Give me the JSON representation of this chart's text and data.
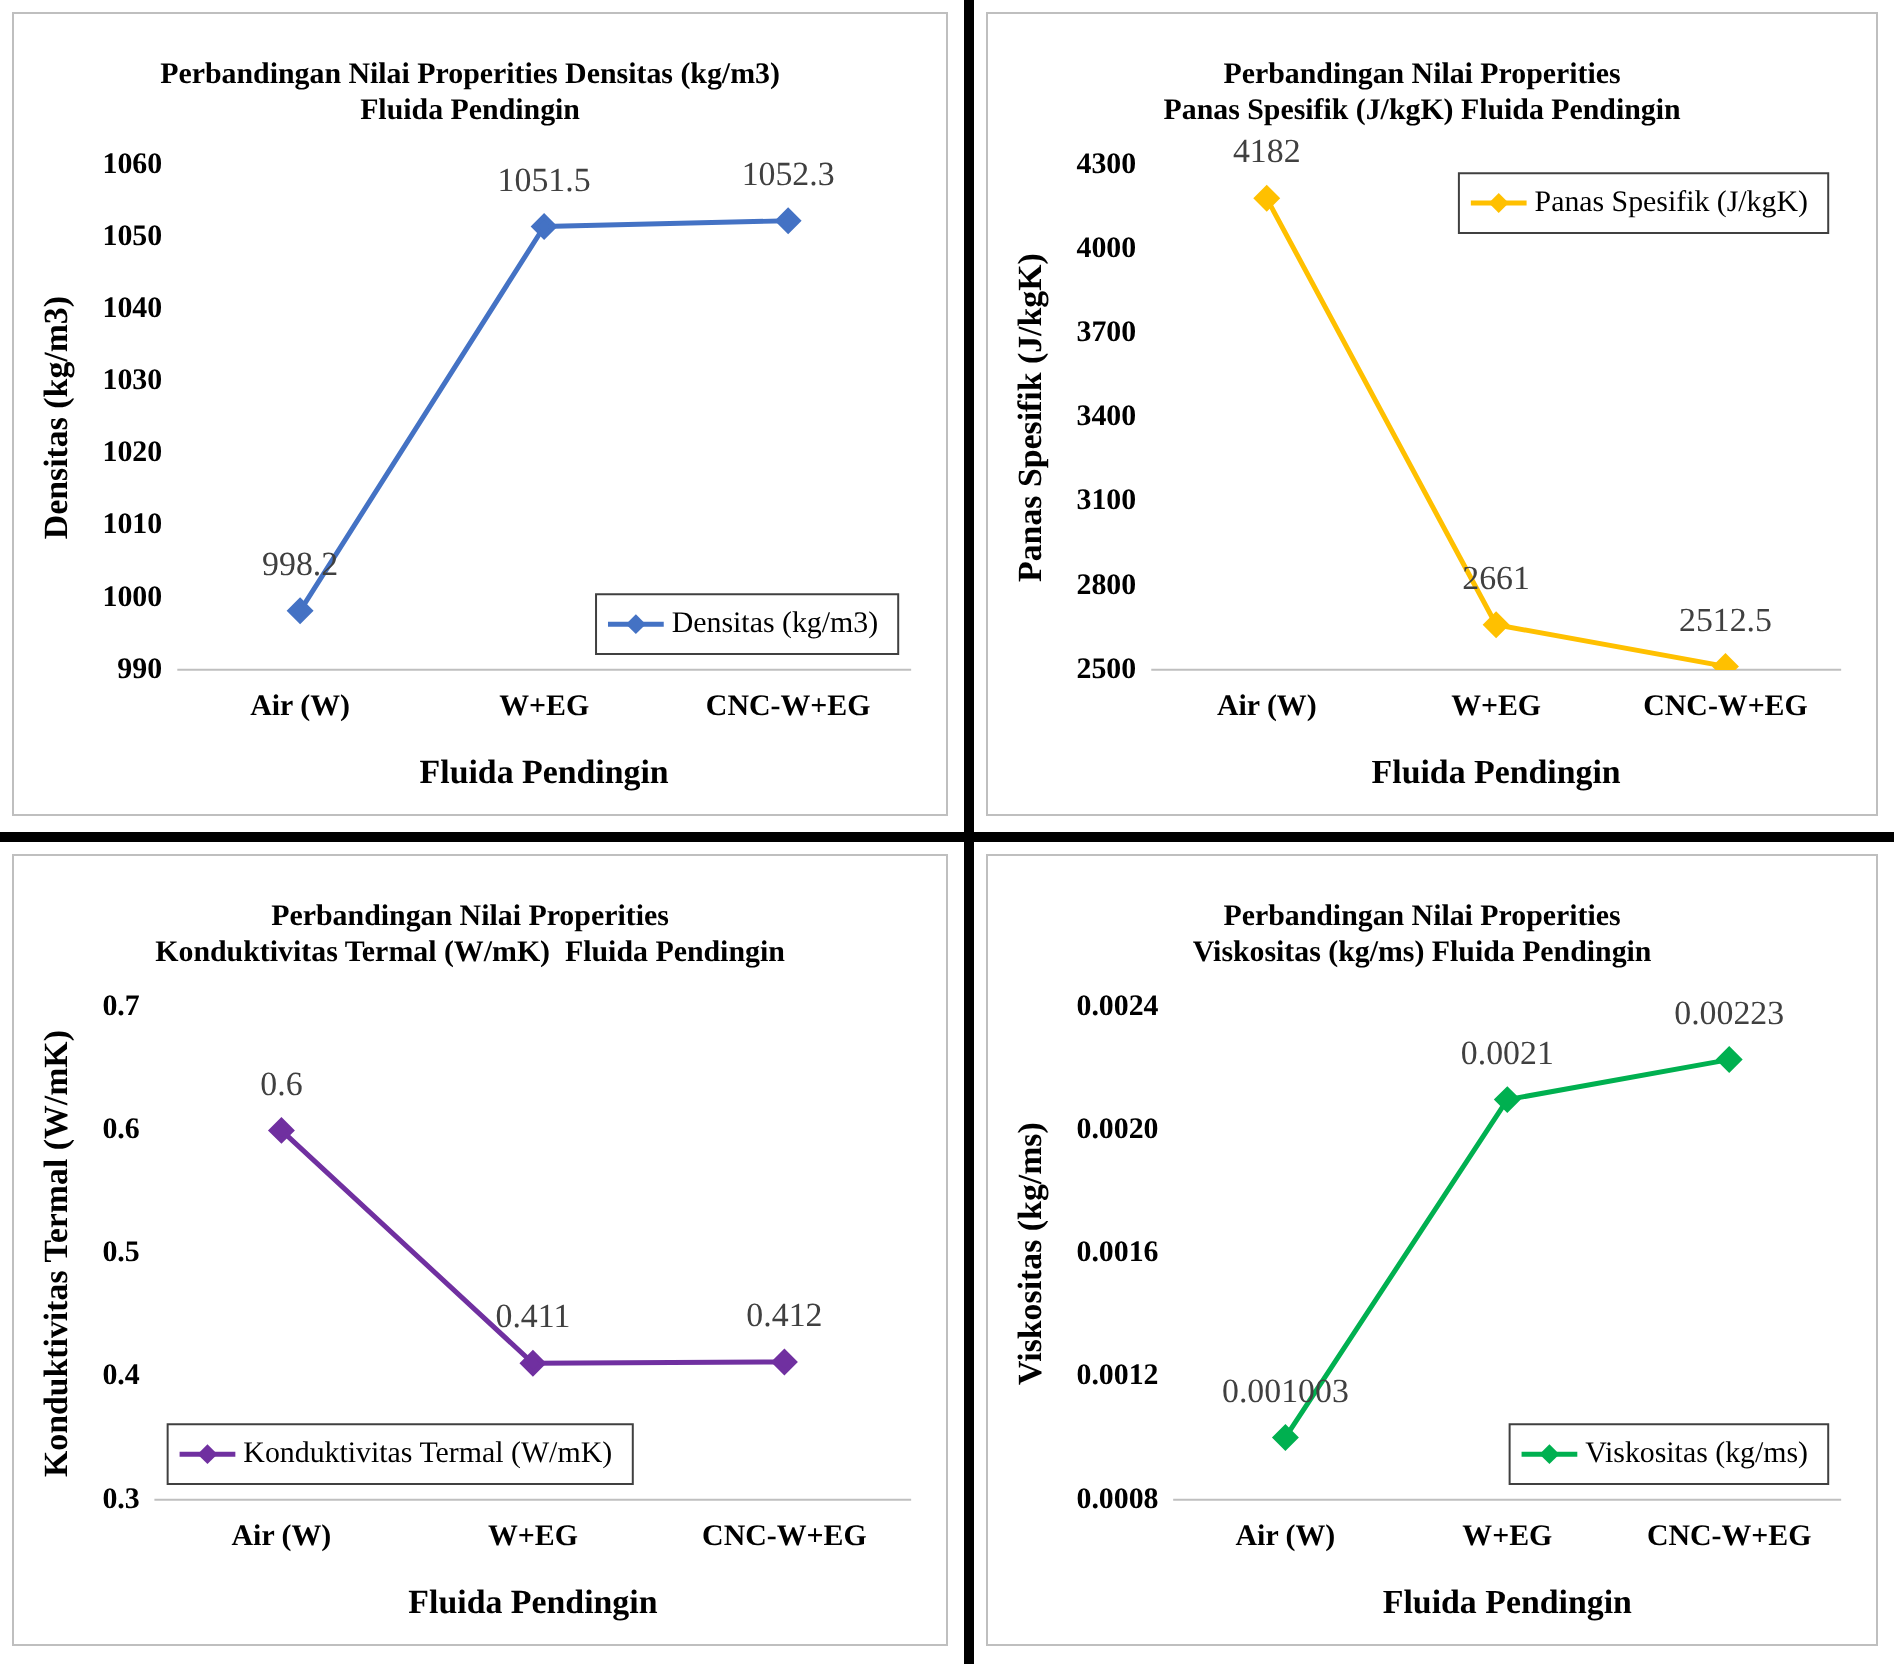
{
  "chart_data": [
    {
      "type": "line",
      "title": "Perbandingan Nilai Properities Densitas (kg/m3)\nFluida Pendingin",
      "xlabel": "Fluida Pendingin",
      "ylabel": "Densitas (kg/m3)",
      "categories": [
        "Air (W)",
        "W+EG",
        "CNC-W+EG"
      ],
      "series": [
        {
          "name": "Densitas (kg/m3)",
          "color": "#4472c4",
          "values": [
            998.2,
            1051.5,
            1052.3
          ]
        }
      ],
      "ylim": [
        990,
        1060
      ],
      "yticks": [
        990,
        1000,
        1010,
        1020,
        1030,
        1040,
        1050,
        1060
      ],
      "grid": false,
      "legend": "bottom right",
      "marker": "diamond",
      "data_labels": true
    },
    {
      "type": "line",
      "title": "Perbandingan Nilai Properities\nPanas Spesifik (J/kgK) Fluida Pendingin",
      "xlabel": "Fluida Pendingin",
      "ylabel": "Panas Spesifik (J/kgK)",
      "categories": [
        "Air (W)",
        "W+EG",
        "CNC-W+EG"
      ],
      "series": [
        {
          "name": "Panas Spesifik (J/kgK)",
          "color": "#ffc000",
          "values": [
            4182,
            2661,
            2512.5
          ]
        }
      ],
      "ylim": [
        2500,
        4300
      ],
      "yticks": [
        2500,
        2800,
        3100,
        3400,
        3700,
        4000,
        4300
      ],
      "grid": false,
      "legend": "top right",
      "marker": "diamond",
      "data_labels": true
    },
    {
      "type": "line",
      "title": "Perbandingan Nilai Properities\nKonduktivitas Termal (W/mK)  Fluida Pendingin",
      "xlabel": "Fluida Pendingin",
      "ylabel": "Konduktivitas Termal (W/mK)",
      "categories": [
        "Air (W)",
        "W+EG",
        "CNC-W+EG"
      ],
      "series": [
        {
          "name": "Konduktivitas Termal (W/mK)",
          "color": "#7030a0",
          "values": [
            0.6,
            0.411,
            0.412
          ]
        }
      ],
      "ylim": [
        0.3,
        0.7
      ],
      "yticks": [
        0.3,
        0.4,
        0.5,
        0.6,
        0.7
      ],
      "grid": false,
      "legend": "bottom left",
      "marker": "diamond",
      "data_labels": true
    },
    {
      "type": "line",
      "title": "Perbandingan Nilai Properities\nViskositas (kg/ms) Fluida Pendingin",
      "xlabel": "Fluida Pendingin",
      "ylabel": "Viskositas (kg/ms)",
      "categories": [
        "Air (W)",
        "W+EG",
        "CNC-W+EG"
      ],
      "series": [
        {
          "name": "Viskositas (kg/ms)",
          "color": "#00b050",
          "values": [
            0.001003,
            0.0021,
            0.00223
          ]
        }
      ],
      "ylim": [
        0.0008,
        0.0024
      ],
      "yticks": [
        0.0008,
        0.0012,
        0.0016,
        {
          "value": 0.002,
          "label": "0.0020"
        },
        0.0024
      ],
      "grid": false,
      "legend": "bottom right",
      "marker": "diamond",
      "data_labels": true
    }
  ]
}
